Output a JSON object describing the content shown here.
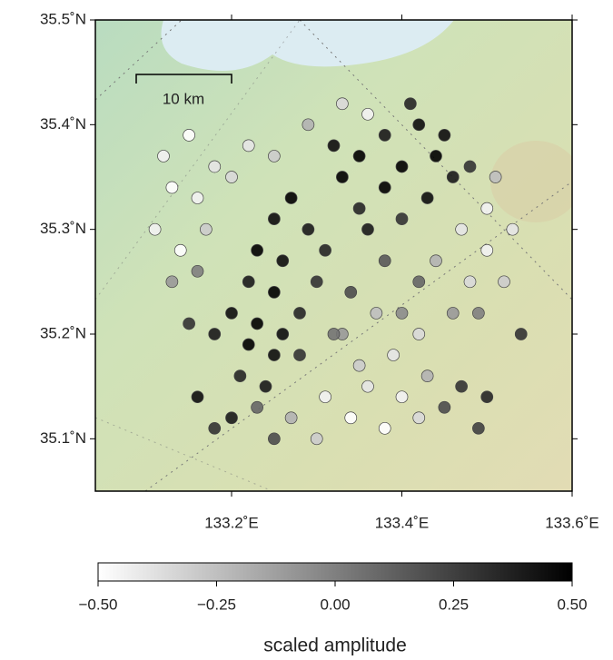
{
  "chart_data": {
    "type": "scatter",
    "x": [
      133.32,
      133.35,
      133.38,
      133.4,
      133.42,
      133.44,
      133.46,
      133.43,
      133.38,
      133.35,
      133.33,
      133.36,
      133.4,
      133.45,
      133.48,
      133.41,
      133.27,
      133.25,
      133.29,
      133.23,
      133.26,
      133.22,
      133.25,
      133.2,
      133.23,
      133.26,
      133.22,
      133.25,
      133.28,
      133.18,
      133.15,
      133.21,
      133.24,
      133.3,
      133.31,
      133.28,
      133.12,
      133.15,
      133.18,
      133.13,
      133.16,
      133.2,
      133.11,
      133.14,
      133.17,
      133.22,
      133.25,
      133.29,
      133.33,
      133.36,
      133.13,
      133.16,
      133.31,
      133.34,
      133.36,
      133.38,
      133.4,
      133.42,
      133.35,
      133.39,
      133.43,
      133.3,
      133.27,
      133.33,
      133.37,
      133.42,
      133.45,
      133.47,
      133.49,
      133.5,
      133.25,
      133.2,
      133.18,
      133.16,
      133.23,
      133.47,
      133.5,
      133.52,
      133.48,
      133.44,
      133.5,
      133.53,
      133.46,
      133.49,
      133.54,
      133.42,
      133.38,
      133.34,
      133.32,
      133.4,
      133.51
    ],
    "y": [
      35.38,
      35.37,
      35.39,
      35.36,
      35.4,
      35.37,
      35.35,
      35.33,
      35.34,
      35.32,
      35.35,
      35.3,
      35.31,
      35.39,
      35.36,
      35.42,
      35.33,
      35.31,
      35.3,
      35.28,
      35.27,
      35.25,
      35.24,
      35.22,
      35.21,
      35.2,
      35.19,
      35.18,
      35.22,
      35.2,
      35.21,
      35.16,
      35.15,
      35.25,
      35.28,
      35.18,
      35.37,
      35.39,
      35.36,
      35.34,
      35.33,
      35.35,
      35.3,
      35.28,
      35.3,
      35.38,
      35.37,
      35.4,
      35.42,
      35.41,
      35.25,
      35.26,
      35.14,
      35.12,
      35.15,
      35.11,
      35.14,
      35.12,
      35.17,
      35.18,
      35.16,
      35.1,
      35.12,
      35.2,
      35.22,
      35.2,
      35.13,
      35.15,
      35.11,
      35.14,
      35.1,
      35.12,
      35.11,
      35.14,
      35.13,
      35.3,
      35.28,
      35.25,
      35.25,
      35.27,
      35.32,
      35.3,
      35.22,
      35.22,
      35.2,
      35.25,
      35.27,
      35.24,
      35.2,
      35.22,
      35.35
    ],
    "values": [
      0.45,
      0.5,
      0.4,
      0.5,
      0.45,
      0.5,
      0.4,
      0.45,
      0.5,
      0.35,
      0.5,
      0.4,
      0.3,
      0.45,
      0.3,
      0.35,
      0.5,
      0.45,
      0.4,
      0.5,
      0.45,
      0.4,
      0.5,
      0.45,
      0.5,
      0.45,
      0.5,
      0.45,
      0.35,
      0.4,
      0.3,
      0.35,
      0.4,
      0.3,
      0.35,
      0.3,
      -0.45,
      -0.5,
      -0.4,
      -0.5,
      -0.45,
      -0.35,
      -0.45,
      -0.5,
      -0.3,
      -0.4,
      -0.3,
      -0.2,
      -0.35,
      -0.45,
      -0.1,
      0.0,
      -0.45,
      -0.5,
      -0.4,
      -0.5,
      -0.45,
      -0.35,
      -0.3,
      -0.4,
      -0.2,
      -0.3,
      -0.2,
      -0.1,
      -0.25,
      -0.35,
      0.2,
      0.3,
      0.25,
      0.35,
      0.2,
      0.4,
      0.3,
      0.45,
      0.1,
      -0.4,
      -0.45,
      -0.3,
      -0.35,
      -0.2,
      -0.45,
      -0.4,
      -0.1,
      0.0,
      0.3,
      0.1,
      0.15,
      0.2,
      0.05,
      -0.05,
      -0.25
    ],
    "xlim": [
      133.04,
      133.6
    ],
    "ylim": [
      35.05,
      35.5
    ],
    "xticks": [
      {
        "value": 133.2,
        "label": "133.2˚E"
      },
      {
        "value": 133.4,
        "label": "133.4˚E"
      },
      {
        "value": 133.6,
        "label": "133.6˚E"
      }
    ],
    "yticks": [
      {
        "value": 35.1,
        "label": "35.1˚N"
      },
      {
        "value": 35.2,
        "label": "35.2˚N"
      },
      {
        "value": 35.3,
        "label": "35.3˚N"
      },
      {
        "value": 35.4,
        "label": "35.4˚N"
      },
      {
        "value": 35.5,
        "label": "35.5˚N"
      }
    ],
    "scale_bar_label": "10 km",
    "colorbar": {
      "lim": [
        -0.5,
        0.5
      ],
      "label": "scaled amplitude",
      "ticks": [
        {
          "value": -0.5,
          "label": "−0.50"
        },
        {
          "value": -0.25,
          "label": "−0.25"
        },
        {
          "value": 0,
          "label": "0.00"
        },
        {
          "value": 0.25,
          "label": "0.25"
        },
        {
          "value": 0.5,
          "label": "0.50"
        }
      ]
    }
  }
}
